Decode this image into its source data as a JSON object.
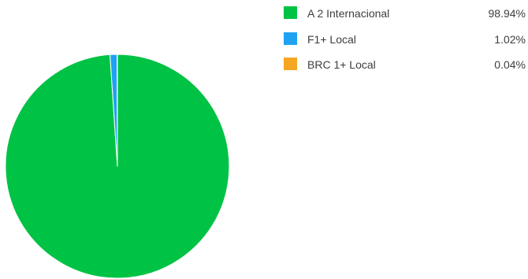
{
  "chart_data": {
    "type": "pie",
    "title": "",
    "slices": [
      {
        "label": "A 2 Internacional",
        "value": 98.94,
        "display": "98.94%",
        "color": "#00c244"
      },
      {
        "label": "F1+ Local",
        "value": 1.02,
        "display": "1.02%",
        "color": "#1fa2f2"
      },
      {
        "label": "BRC 1+ Local",
        "value": 0.04,
        "display": "0.04%",
        "color": "#f5a623"
      }
    ],
    "legend_position": "top-right",
    "start_angle_deg": 0,
    "direction": "clockwise"
  }
}
